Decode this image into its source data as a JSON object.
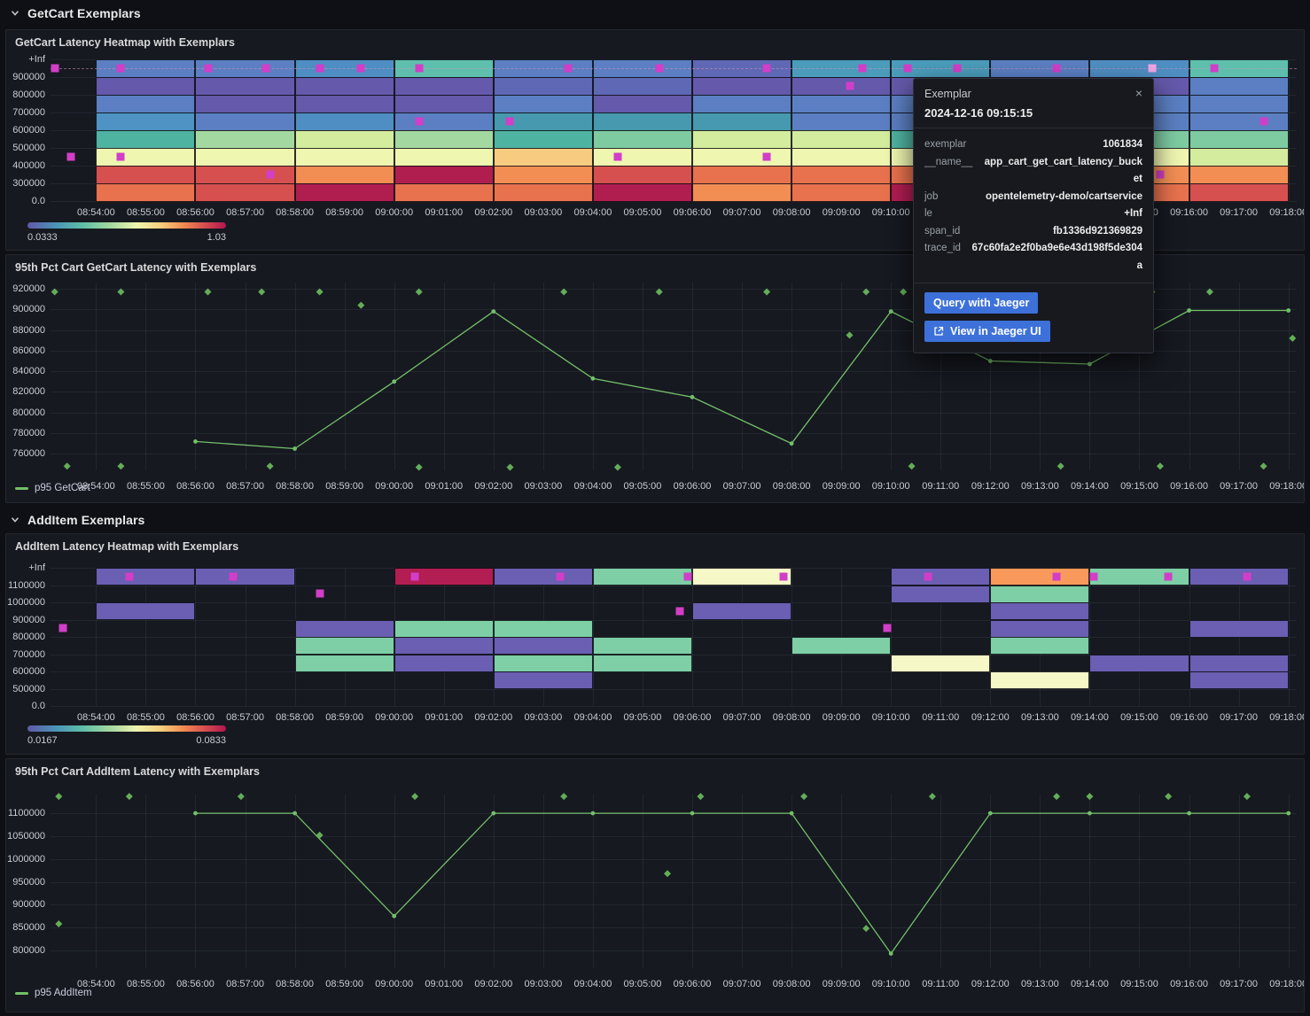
{
  "sections": [
    {
      "title": "GetCart Exemplars"
    },
    {
      "title": "AddItem Exemplars"
    }
  ],
  "time_axis": {
    "start": "08:53:05",
    "end": "09:18:10",
    "labels": [
      "08:54:00",
      "08:55:00",
      "08:56:00",
      "08:57:00",
      "08:58:00",
      "08:59:00",
      "09:00:00",
      "09:01:00",
      "09:02:00",
      "09:03:00",
      "09:04:00",
      "09:05:00",
      "09:06:00",
      "09:07:00",
      "09:08:00",
      "09:09:00",
      "09:10:00",
      "09:11:00",
      "09:12:00",
      "09:13:00",
      "09:14:00",
      "09:15:00",
      "09:16:00",
      "09:17:00",
      "09:18:00"
    ]
  },
  "colors": {
    "exemplar": "#d23ec8",
    "exemplar_highlight": "#efa4e4",
    "series": "#73bf69",
    "diamond": "#64ad58",
    "heatmap_palette": {
      "blue": "#5b7fc2",
      "steelblue": "#4f8ec2",
      "bluepurple": "#5f68b4",
      "purple": "#6459aa",
      "lightblue": "#4f93c4",
      "steelteal": "#4a9cba",
      "tealblue": "#4699ae",
      "teal": "#4fb3a2",
      "tealgreen": "#5ec0ac",
      "green": "#7ecba2",
      "lightgreen": "#a4d8a1",
      "yellowgreen": "#d4ec9e",
      "paleyellow": "#eff6b0",
      "lightorange": "#f8cc80",
      "orange": "#f28e54",
      "orangered": "#e8724e",
      "red": "#d5504f",
      "crimson": "#b01e50",
      "purple2": "#6a5fb2",
      "green2": "#7ecfa6",
      "paleyellow2": "#f6f8c8",
      "crimson2": "#b21d52",
      "orange2": "#f99a5c"
    }
  },
  "heatmap1": {
    "type": "heatmap",
    "title": "GetCart Latency Heatmap with Exemplars",
    "y_buckets": [
      "+Inf",
      "900000",
      "800000",
      "700000",
      "600000",
      "500000",
      "400000",
      "300000",
      "0.0"
    ],
    "colorbar": {
      "min": "0.0333",
      "max": "1.03"
    },
    "column_start": "08:54:00",
    "column_minutes": 2,
    "columns": [
      [
        "blue",
        "purple",
        "blue",
        "lightblue",
        "teal",
        "paleyellow",
        "red",
        "orangered"
      ],
      [
        "blue",
        "purple",
        "purple",
        "blue",
        "lightgreen",
        "paleyellow",
        "red",
        "red"
      ],
      [
        "steelblue",
        "purple",
        "purple",
        "steelblue",
        "yellowgreen",
        "paleyellow",
        "orange",
        "crimson"
      ],
      [
        "tealgreen",
        "purple",
        "purple",
        "blue",
        "lightgreen",
        "paleyellow",
        "crimson",
        "orangered"
      ],
      [
        "blue",
        "bluepurple",
        "blue",
        "tealblue",
        "teal",
        "lightorange",
        "orange",
        "orangered"
      ],
      [
        "blue",
        "bluepurple",
        "purple",
        "tealblue",
        "green",
        "paleyellow",
        "red",
        "crimson"
      ],
      [
        "bluepurple",
        "purple",
        "blue",
        "tealblue",
        "yellowgreen",
        "paleyellow",
        "orangered",
        "orange"
      ],
      [
        "steelteal",
        "purple",
        "blue",
        "blue",
        "yellowgreen",
        "paleyellow",
        "orangered",
        "orangered"
      ],
      [
        "steelteal",
        "purple",
        "blue",
        "blue",
        "teal",
        "paleyellow",
        "orangered",
        "crimson"
      ],
      [
        "blue",
        "purple",
        "blue",
        "blue",
        "green",
        "paleyellow",
        "orange",
        "red"
      ],
      [
        "steelblue",
        "purple",
        "blue",
        "blue",
        "green",
        "paleyellow",
        "orange",
        "orangered"
      ],
      [
        "tealgreen",
        "blue",
        "blue",
        "blue",
        "green",
        "yellowgreen",
        "orange",
        "red"
      ]
    ],
    "dashed_guide_row": 0,
    "exemplars": [
      {
        "t": "08:53:10",
        "r": 0
      },
      {
        "t": "08:54:30",
        "r": 0
      },
      {
        "t": "08:56:15",
        "r": 0
      },
      {
        "t": "08:57:25",
        "r": 0
      },
      {
        "t": "08:58:30",
        "r": 0
      },
      {
        "t": "08:59:20",
        "r": 0
      },
      {
        "t": "09:00:30",
        "r": 0
      },
      {
        "t": "09:03:30",
        "r": 0
      },
      {
        "t": "09:05:20",
        "r": 0
      },
      {
        "t": "09:07:30",
        "r": 0
      },
      {
        "t": "09:09:25",
        "r": 0
      },
      {
        "t": "09:10:20",
        "r": 0
      },
      {
        "t": "09:11:20",
        "r": 0
      },
      {
        "t": "09:13:20",
        "r": 0
      },
      {
        "t": "09:15:15",
        "r": 0,
        "highlight": true
      },
      {
        "t": "09:16:30",
        "r": 0
      },
      {
        "t": "09:09:10",
        "r": 1
      },
      {
        "t": "09:00:30",
        "r": 3
      },
      {
        "t": "09:02:20",
        "r": 3
      },
      {
        "t": "09:17:30",
        "r": 3
      },
      {
        "t": "08:53:30",
        "r": 5
      },
      {
        "t": "08:54:30",
        "r": 5
      },
      {
        "t": "09:04:30",
        "r": 5
      },
      {
        "t": "09:07:30",
        "r": 5
      },
      {
        "t": "08:57:30",
        "r": 6
      },
      {
        "t": "09:15:25",
        "r": 6
      }
    ]
  },
  "line1": {
    "type": "line",
    "title": "95th Pct Cart GetCart Latency with Exemplars",
    "legend": "p95 GetCart",
    "y_ticks": [
      "920000",
      "900000",
      "880000",
      "860000",
      "840000",
      "820000",
      "800000",
      "780000",
      "760000"
    ],
    "ylim": [
      744000,
      926000
    ],
    "points": [
      [
        "08:56:00",
        772000
      ],
      [
        "08:58:00",
        765000
      ],
      [
        "09:00:00",
        830000
      ],
      [
        "09:02:00",
        898000
      ],
      [
        "09:04:00",
        833000
      ],
      [
        "09:06:00",
        815000
      ],
      [
        "09:08:00",
        770000
      ],
      [
        "09:10:00",
        898000
      ],
      [
        "09:12:00",
        850000
      ],
      [
        "09:14:00",
        847000
      ],
      [
        "09:16:00",
        899000
      ],
      [
        "09:18:00",
        899000
      ]
    ],
    "exemplars": [
      [
        "08:53:10",
        917000
      ],
      [
        "08:54:30",
        917000
      ],
      [
        "08:56:15",
        917000
      ],
      [
        "08:57:20",
        917000
      ],
      [
        "08:58:30",
        917000
      ],
      [
        "09:00:30",
        917000
      ],
      [
        "09:03:25",
        917000
      ],
      [
        "09:05:20",
        917000
      ],
      [
        "09:07:30",
        917000
      ],
      [
        "09:09:30",
        917000
      ],
      [
        "09:10:15",
        917000
      ],
      [
        "09:15:15",
        917000
      ],
      [
        "09:16:25",
        917000
      ],
      [
        "08:59:20",
        904000
      ],
      [
        "09:09:10",
        875000
      ],
      [
        "09:18:05",
        872000
      ],
      [
        "08:53:25",
        748000
      ],
      [
        "08:54:30",
        748000
      ],
      [
        "08:57:30",
        748000
      ],
      [
        "09:00:30",
        747000
      ],
      [
        "09:02:20",
        747000
      ],
      [
        "09:04:30",
        747000
      ],
      [
        "09:10:25",
        748000
      ],
      [
        "09:13:25",
        748000
      ],
      [
        "09:15:25",
        748000
      ],
      [
        "09:17:30",
        748000
      ]
    ]
  },
  "heatmap2": {
    "type": "heatmap",
    "title": "AddItem Latency Heatmap with Exemplars",
    "y_buckets": [
      "+Inf",
      "1100000",
      "1000000",
      "900000",
      "800000",
      "700000",
      "600000",
      "500000",
      "0.0"
    ],
    "colorbar": {
      "min": "0.0167",
      "max": "0.0833"
    },
    "column_start": "08:54:00",
    "column_minutes": 2,
    "columns": [
      [
        "purple2",
        null,
        "purple2",
        null,
        null,
        null,
        null,
        null
      ],
      [
        "purple2",
        null,
        null,
        null,
        null,
        null,
        null,
        null
      ],
      [
        null,
        null,
        null,
        "purple2",
        "green2",
        "green2",
        null,
        null
      ],
      [
        "crimson2",
        null,
        null,
        "green2",
        "purple2",
        "purple2",
        null,
        null
      ],
      [
        "purple2",
        null,
        null,
        "green2",
        "purple2",
        "green2",
        "purple2",
        null
      ],
      [
        "green2",
        null,
        null,
        null,
        "green2",
        "green2",
        null,
        null
      ],
      [
        "paleyellow2",
        null,
        "purple2",
        null,
        null,
        null,
        null,
        null
      ],
      [
        null,
        null,
        null,
        null,
        "green2",
        null,
        null,
        null
      ],
      [
        "purple2",
        "purple2",
        null,
        null,
        null,
        "paleyellow2",
        null,
        null
      ],
      [
        "orange2",
        "green2",
        "purple2",
        "purple2",
        "green2",
        null,
        "paleyellow2",
        null
      ],
      [
        "green2",
        null,
        null,
        null,
        null,
        "purple2",
        null,
        null
      ],
      [
        "purple2",
        null,
        null,
        "purple2",
        null,
        "purple2",
        "purple2",
        null
      ]
    ],
    "dashed_guide_row": null,
    "exemplars": [
      {
        "t": "08:54:40",
        "r": 0
      },
      {
        "t": "08:56:45",
        "r": 0
      },
      {
        "t": "09:00:25",
        "r": 0
      },
      {
        "t": "09:03:20",
        "r": 0
      },
      {
        "t": "09:05:55",
        "r": 0
      },
      {
        "t": "09:07:50",
        "r": 0
      },
      {
        "t": "09:10:45",
        "r": 0
      },
      {
        "t": "09:13:20",
        "r": 0
      },
      {
        "t": "09:14:05",
        "r": 0
      },
      {
        "t": "09:15:35",
        "r": 0
      },
      {
        "t": "09:17:10",
        "r": 0
      },
      {
        "t": "08:58:30",
        "r": 1
      },
      {
        "t": "09:05:45",
        "r": 2
      },
      {
        "t": "08:53:20",
        "r": 3
      },
      {
        "t": "09:09:55",
        "r": 3
      }
    ]
  },
  "line2": {
    "type": "line",
    "title": "95th Pct Cart AddItem Latency with Exemplars",
    "legend": "p95 AddItem",
    "y_ticks": [
      "1100000",
      "1050000",
      "1000000",
      "950000",
      "900000",
      "850000",
      "800000"
    ],
    "ylim": [
      761000,
      1141000
    ],
    "points": [
      [
        "08:56:00",
        1100000
      ],
      [
        "08:58:00",
        1100000
      ],
      [
        "09:00:00",
        875000
      ],
      [
        "09:02:00",
        1100000
      ],
      [
        "09:04:00",
        1100000
      ],
      [
        "09:06:00",
        1100000
      ],
      [
        "09:08:00",
        1100000
      ],
      [
        "09:10:00",
        793000
      ],
      [
        "09:12:00",
        1100000
      ],
      [
        "09:14:00",
        1100000
      ],
      [
        "09:16:00",
        1100000
      ],
      [
        "09:18:00",
        1100000
      ]
    ],
    "exemplars": [
      [
        "08:53:15",
        1137000
      ],
      [
        "08:54:40",
        1137000
      ],
      [
        "08:56:55",
        1137000
      ],
      [
        "09:00:25",
        1137000
      ],
      [
        "09:03:25",
        1137000
      ],
      [
        "09:06:10",
        1137000
      ],
      [
        "09:08:15",
        1137000
      ],
      [
        "09:10:50",
        1137000
      ],
      [
        "09:13:20",
        1137000
      ],
      [
        "09:14:00",
        1137000
      ],
      [
        "09:15:35",
        1137000
      ],
      [
        "09:17:10",
        1137000
      ],
      [
        "08:53:15",
        858000
      ],
      [
        "08:58:30",
        1052000
      ],
      [
        "09:05:30",
        968000
      ],
      [
        "09:09:30",
        848000
      ]
    ]
  },
  "tooltip": {
    "title": "Exemplar",
    "close": "×",
    "time": "2024-12-16 09:15:15",
    "rows": [
      {
        "key": "exemplar",
        "value": "1061834"
      },
      {
        "key": "__name__",
        "value": "app_cart_get_cart_latency_bucket"
      },
      {
        "key": "job",
        "value": "opentelemetry-demo/cartservice"
      },
      {
        "key": "le",
        "value": "+Inf"
      },
      {
        "key": "span_id",
        "value": "fb1336d921369829"
      },
      {
        "key": "trace_id",
        "value": "67c60fa2e2f0ba9e6e43d198f5de304a"
      }
    ],
    "actions": [
      "Query with Jaeger",
      "View in Jaeger UI"
    ]
  }
}
